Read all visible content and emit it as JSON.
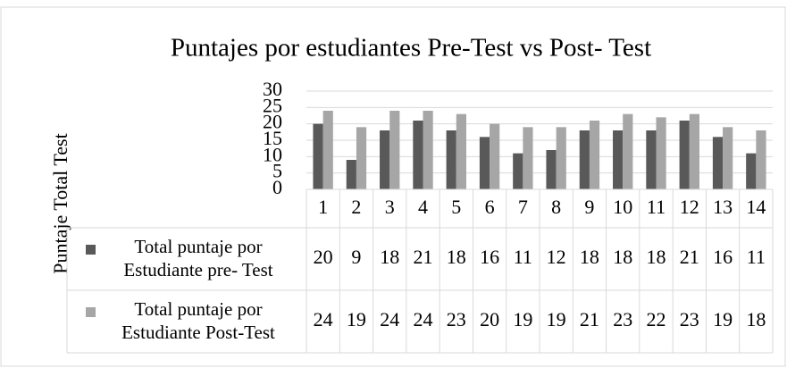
{
  "chart_data": {
    "type": "bar",
    "title": "Puntajes por estudiantes Pre-Test vs Post- Test",
    "y_label": "Puntaje Total Test",
    "categories": [
      "1",
      "2",
      "3",
      "4",
      "5",
      "6",
      "7",
      "8",
      "9",
      "10",
      "11",
      "12",
      "13",
      "14"
    ],
    "series": [
      {
        "name": "Total puntaje por Estudiante pre- Test",
        "color": "#595959",
        "values": [
          20,
          9,
          18,
          21,
          18,
          16,
          11,
          12,
          18,
          18,
          18,
          21,
          16,
          11
        ]
      },
      {
        "name": "Total puntaje por Estudiante  Post-Test",
        "color": "#a6a6a6",
        "values": [
          24,
          19,
          24,
          24,
          23,
          20,
          19,
          19,
          21,
          23,
          22,
          23,
          19,
          18
        ]
      }
    ],
    "ylim": [
      0,
      30
    ],
    "yticks": [
      0,
      5,
      10,
      15,
      20,
      25,
      30
    ],
    "grid": true,
    "data_table": true
  }
}
